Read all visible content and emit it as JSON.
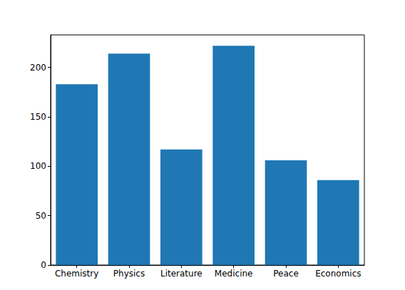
{
  "chart_data": {
    "type": "bar",
    "categories": [
      "Chemistry",
      "Physics",
      "Literature",
      "Medicine",
      "Peace",
      "Economics"
    ],
    "values": [
      183,
      214,
      117,
      222,
      106,
      86
    ],
    "color": "#1f77b4",
    "ylim": [
      0,
      233
    ],
    "yticks": [
      0,
      50,
      100,
      150,
      200
    ],
    "grid": false
  }
}
